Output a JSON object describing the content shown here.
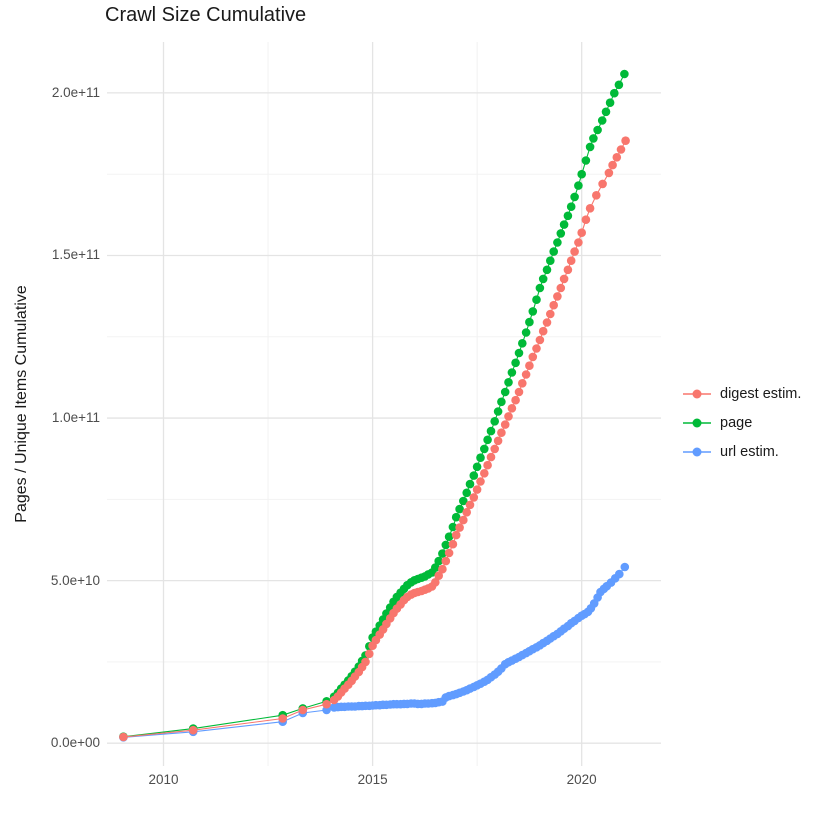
{
  "title": "Crawl Size Cumulative",
  "axes": {
    "x": {
      "title": "",
      "ticks": [
        {
          "label": "2010",
          "year": 2010
        },
        {
          "label": "2015",
          "year": 2015
        },
        {
          "label": "2020",
          "year": 2020
        }
      ],
      "minor_years": [
        2012.5,
        2017.5
      ]
    },
    "y": {
      "title": "Pages / Unique Items Cumulative",
      "ticks": [
        {
          "label": "0.0e+00",
          "value_billions": 0
        },
        {
          "label": "5.0e+10",
          "value_billions": 50
        },
        {
          "label": "1.0e+11",
          "value_billions": 100
        },
        {
          "label": "1.5e+11",
          "value_billions": 150
        },
        {
          "label": "2.0e+11",
          "value_billions": 200
        }
      ],
      "minor_billions": [
        25,
        75,
        125,
        175
      ]
    }
  },
  "legend": {
    "position": "right",
    "items": [
      {
        "label": "digest estim.",
        "color": "#F8766D"
      },
      {
        "label": "page",
        "color": "#00BA38"
      },
      {
        "label": "url estim.",
        "color": "#619CFF"
      }
    ]
  },
  "colors": {
    "digest": "#F8766D",
    "page": "#00BA38",
    "url": "#619CFF",
    "grid_major": "#e4e4e4",
    "grid_minor": "#f1f1f1",
    "tick_text": "#4d4d4d",
    "title_text": "#1a1a1a",
    "background": "#ffffff"
  },
  "chart_data": {
    "type": "line",
    "subtype": "points-with-line",
    "title": "Crawl Size Cumulative",
    "xlabel": "",
    "ylabel": "Pages / Unique Items Cumulative",
    "x_unit": "year (decimal)",
    "y_unit": "value_billions = pages/items in units of 1e9; axis shows scientific notation",
    "xlim": [
      2008.6,
      2021.9
    ],
    "ylim_billions": [
      -7,
      216
    ],
    "grid": true,
    "legend_position": "right",
    "series": [
      {
        "name": "digest estim.",
        "color": "#F8766D",
        "z": 3,
        "points": [
          [
            2009.04,
            1.9
          ],
          [
            2010.71,
            4.0
          ],
          [
            2012.85,
            7.6
          ],
          [
            2013.33,
            10.2
          ],
          [
            2013.9,
            12.0
          ],
          [
            2014.08,
            13.3
          ],
          [
            2014.17,
            14.4
          ],
          [
            2014.25,
            15.6
          ],
          [
            2014.33,
            16.8
          ],
          [
            2014.42,
            18.0
          ],
          [
            2014.5,
            19.2
          ],
          [
            2014.58,
            20.5
          ],
          [
            2014.67,
            21.9
          ],
          [
            2014.75,
            23.4
          ],
          [
            2014.83,
            25.0
          ],
          [
            2014.92,
            27.5
          ],
          [
            2015.0,
            30.0
          ],
          [
            2015.08,
            31.7
          ],
          [
            2015.17,
            33.4
          ],
          [
            2015.25,
            35.0
          ],
          [
            2015.33,
            36.7
          ],
          [
            2015.42,
            38.4
          ],
          [
            2015.5,
            40.0
          ],
          [
            2015.58,
            41.4
          ],
          [
            2015.67,
            42.7
          ],
          [
            2015.75,
            44.0
          ],
          [
            2015.83,
            45.0
          ],
          [
            2015.92,
            45.7
          ],
          [
            2016.0,
            46.2
          ],
          [
            2016.08,
            46.5
          ],
          [
            2016.17,
            46.8
          ],
          [
            2016.25,
            47.2
          ],
          [
            2016.33,
            47.6
          ],
          [
            2016.42,
            48.2
          ],
          [
            2016.5,
            49.5
          ],
          [
            2016.58,
            51.5
          ],
          [
            2016.67,
            53.5
          ],
          [
            2016.75,
            56.0
          ],
          [
            2016.83,
            58.5
          ],
          [
            2016.92,
            61.2
          ],
          [
            2017.0,
            64.0
          ],
          [
            2017.08,
            66.3
          ],
          [
            2017.17,
            68.6
          ],
          [
            2017.25,
            71.0
          ],
          [
            2017.33,
            73.3
          ],
          [
            2017.42,
            75.6
          ],
          [
            2017.5,
            78.0
          ],
          [
            2017.58,
            80.5
          ],
          [
            2017.67,
            83.0
          ],
          [
            2017.75,
            85.5
          ],
          [
            2017.83,
            88.0
          ],
          [
            2017.92,
            90.5
          ],
          [
            2018.0,
            93.0
          ],
          [
            2018.08,
            95.5
          ],
          [
            2018.17,
            98.0
          ],
          [
            2018.25,
            100.5
          ],
          [
            2018.33,
            103.0
          ],
          [
            2018.42,
            105.5
          ],
          [
            2018.5,
            108.0
          ],
          [
            2018.58,
            110.7
          ],
          [
            2018.67,
            113.4
          ],
          [
            2018.75,
            116.1
          ],
          [
            2018.83,
            118.8
          ],
          [
            2018.92,
            121.4
          ],
          [
            2019.0,
            124.0
          ],
          [
            2019.08,
            126.7
          ],
          [
            2019.17,
            129.4
          ],
          [
            2019.25,
            132.0
          ],
          [
            2019.33,
            134.7
          ],
          [
            2019.42,
            137.4
          ],
          [
            2019.5,
            140.0
          ],
          [
            2019.58,
            142.8
          ],
          [
            2019.67,
            145.6
          ],
          [
            2019.75,
            148.4
          ],
          [
            2019.83,
            151.2
          ],
          [
            2019.92,
            154.0
          ],
          [
            2020.0,
            157.0
          ],
          [
            2020.1,
            161.0
          ],
          [
            2020.2,
            164.5
          ],
          [
            2020.35,
            168.5
          ],
          [
            2020.5,
            172.0
          ],
          [
            2020.65,
            175.4
          ],
          [
            2020.74,
            177.8
          ],
          [
            2020.84,
            180.2
          ],
          [
            2020.94,
            182.6
          ],
          [
            2021.05,
            185.3
          ]
        ]
      },
      {
        "name": "page",
        "color": "#00BA38",
        "z": 1,
        "points": [
          [
            2009.04,
            2.0
          ],
          [
            2010.71,
            4.5
          ],
          [
            2012.85,
            8.6
          ],
          [
            2013.33,
            10.7
          ],
          [
            2013.9,
            12.9
          ],
          [
            2014.08,
            14.3
          ],
          [
            2014.17,
            15.5
          ],
          [
            2014.25,
            16.8
          ],
          [
            2014.33,
            18.0
          ],
          [
            2014.42,
            19.3
          ],
          [
            2014.5,
            20.6
          ],
          [
            2014.58,
            22.0
          ],
          [
            2014.67,
            23.6
          ],
          [
            2014.75,
            25.3
          ],
          [
            2014.83,
            27.0
          ],
          [
            2014.92,
            29.8
          ],
          [
            2015.0,
            32.5
          ],
          [
            2015.08,
            34.3
          ],
          [
            2015.17,
            36.2
          ],
          [
            2015.25,
            38.0
          ],
          [
            2015.33,
            39.9
          ],
          [
            2015.42,
            41.7
          ],
          [
            2015.5,
            43.5
          ],
          [
            2015.58,
            45.0
          ],
          [
            2015.67,
            46.3
          ],
          [
            2015.75,
            47.5
          ],
          [
            2015.83,
            48.6
          ],
          [
            2015.92,
            49.5
          ],
          [
            2016.0,
            50.1
          ],
          [
            2016.08,
            50.5
          ],
          [
            2016.17,
            50.9
          ],
          [
            2016.25,
            51.3
          ],
          [
            2016.33,
            51.9
          ],
          [
            2016.42,
            52.5
          ],
          [
            2016.5,
            54.0
          ],
          [
            2016.58,
            56.0
          ],
          [
            2016.67,
            58.3
          ],
          [
            2016.75,
            61.0
          ],
          [
            2016.83,
            63.5
          ],
          [
            2016.92,
            66.5
          ],
          [
            2017.0,
            69.5
          ],
          [
            2017.08,
            72.0
          ],
          [
            2017.17,
            74.5
          ],
          [
            2017.25,
            77.0
          ],
          [
            2017.33,
            79.7
          ],
          [
            2017.42,
            82.3
          ],
          [
            2017.5,
            85.0
          ],
          [
            2017.58,
            87.8
          ],
          [
            2017.67,
            90.5
          ],
          [
            2017.75,
            93.3
          ],
          [
            2017.83,
            96.0
          ],
          [
            2017.92,
            99.0
          ],
          [
            2018.0,
            102.0
          ],
          [
            2018.08,
            105.0
          ],
          [
            2018.17,
            108.0
          ],
          [
            2018.25,
            111.0
          ],
          [
            2018.33,
            114.0
          ],
          [
            2018.42,
            117.0
          ],
          [
            2018.5,
            120.0
          ],
          [
            2018.58,
            123.0
          ],
          [
            2018.67,
            126.3
          ],
          [
            2018.75,
            129.5
          ],
          [
            2018.83,
            132.8
          ],
          [
            2018.92,
            136.4
          ],
          [
            2019.0,
            140.0
          ],
          [
            2019.08,
            142.8
          ],
          [
            2019.17,
            145.6
          ],
          [
            2019.25,
            148.4
          ],
          [
            2019.33,
            151.2
          ],
          [
            2019.42,
            154.0
          ],
          [
            2019.5,
            156.8
          ],
          [
            2019.58,
            159.5
          ],
          [
            2019.67,
            162.2
          ],
          [
            2019.75,
            165.0
          ],
          [
            2019.83,
            168.0
          ],
          [
            2019.92,
            171.5
          ],
          [
            2020.0,
            175.0
          ],
          [
            2020.1,
            179.2
          ],
          [
            2020.2,
            183.4
          ],
          [
            2020.28,
            186.0
          ],
          [
            2020.38,
            188.6
          ],
          [
            2020.49,
            191.5
          ],
          [
            2020.58,
            194.2
          ],
          [
            2020.68,
            197.0
          ],
          [
            2020.78,
            199.9
          ],
          [
            2020.89,
            202.5
          ],
          [
            2021.02,
            205.8
          ]
        ]
      },
      {
        "name": "url estim.",
        "color": "#619CFF",
        "z": 2,
        "points": [
          [
            2009.04,
            1.8
          ],
          [
            2010.71,
            3.5
          ],
          [
            2012.85,
            6.6
          ],
          [
            2013.33,
            9.3
          ],
          [
            2013.9,
            10.2
          ],
          [
            2014.08,
            11.0
          ],
          [
            2014.17,
            11.1
          ],
          [
            2014.25,
            11.2
          ],
          [
            2014.33,
            11.2
          ],
          [
            2014.42,
            11.3
          ],
          [
            2014.5,
            11.3
          ],
          [
            2014.58,
            11.3
          ],
          [
            2014.67,
            11.4
          ],
          [
            2014.75,
            11.4
          ],
          [
            2014.83,
            11.5
          ],
          [
            2014.92,
            11.5
          ],
          [
            2015.0,
            11.6
          ],
          [
            2015.08,
            11.7
          ],
          [
            2015.17,
            11.7
          ],
          [
            2015.25,
            11.8
          ],
          [
            2015.33,
            11.8
          ],
          [
            2015.42,
            11.9
          ],
          [
            2015.5,
            12.0
          ],
          [
            2015.58,
            12.0
          ],
          [
            2015.67,
            12.0
          ],
          [
            2015.75,
            12.1
          ],
          [
            2015.83,
            12.1
          ],
          [
            2015.92,
            12.2
          ],
          [
            2016.0,
            12.2
          ],
          [
            2016.08,
            12.1
          ],
          [
            2016.17,
            12.1
          ],
          [
            2016.25,
            12.2
          ],
          [
            2016.33,
            12.2
          ],
          [
            2016.42,
            12.3
          ],
          [
            2016.5,
            12.4
          ],
          [
            2016.58,
            12.6
          ],
          [
            2016.67,
            12.8
          ],
          [
            2016.75,
            14.1
          ],
          [
            2016.83,
            14.5
          ],
          [
            2016.92,
            14.8
          ],
          [
            2017.0,
            15.1
          ],
          [
            2017.08,
            15.5
          ],
          [
            2017.17,
            15.9
          ],
          [
            2017.25,
            16.3
          ],
          [
            2017.33,
            16.8
          ],
          [
            2017.42,
            17.3
          ],
          [
            2017.5,
            17.8
          ],
          [
            2017.58,
            18.3
          ],
          [
            2017.67,
            18.9
          ],
          [
            2017.75,
            19.5
          ],
          [
            2017.83,
            20.3
          ],
          [
            2017.92,
            21.1
          ],
          [
            2018.0,
            22.0
          ],
          [
            2018.08,
            23.0
          ],
          [
            2018.17,
            24.3
          ],
          [
            2018.25,
            24.9
          ],
          [
            2018.33,
            25.4
          ],
          [
            2018.42,
            26.0
          ],
          [
            2018.5,
            26.5
          ],
          [
            2018.58,
            27.1
          ],
          [
            2018.67,
            27.7
          ],
          [
            2018.75,
            28.3
          ],
          [
            2018.83,
            28.9
          ],
          [
            2018.92,
            29.5
          ],
          [
            2019.0,
            30.1
          ],
          [
            2019.08,
            30.8
          ],
          [
            2019.17,
            31.5
          ],
          [
            2019.25,
            32.2
          ],
          [
            2019.33,
            32.9
          ],
          [
            2019.42,
            33.6
          ],
          [
            2019.5,
            34.4
          ],
          [
            2019.58,
            35.2
          ],
          [
            2019.67,
            36.0
          ],
          [
            2019.75,
            36.9
          ],
          [
            2019.83,
            37.6
          ],
          [
            2019.92,
            38.5
          ],
          [
            2020.0,
            39.2
          ],
          [
            2020.07,
            39.7
          ],
          [
            2020.15,
            40.4
          ],
          [
            2020.22,
            41.5
          ],
          [
            2020.3,
            43.0
          ],
          [
            2020.38,
            44.8
          ],
          [
            2020.45,
            46.5
          ],
          [
            2020.53,
            47.5
          ],
          [
            2020.6,
            48.3
          ],
          [
            2020.7,
            49.4
          ],
          [
            2020.8,
            50.7
          ],
          [
            2020.9,
            52.0
          ],
          [
            2021.03,
            54.2
          ]
        ]
      }
    ]
  }
}
